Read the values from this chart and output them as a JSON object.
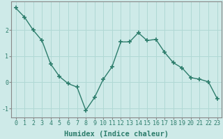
{
  "x": [
    0,
    1,
    2,
    3,
    4,
    5,
    6,
    7,
    8,
    9,
    10,
    11,
    12,
    13,
    14,
    15,
    16,
    17,
    18,
    19,
    20,
    21,
    22,
    23
  ],
  "y": [
    2.85,
    2.5,
    2.0,
    1.6,
    0.7,
    0.22,
    -0.05,
    -0.18,
    -1.07,
    -0.58,
    0.12,
    0.6,
    1.55,
    1.55,
    1.9,
    1.6,
    1.65,
    1.15,
    0.75,
    0.55,
    0.18,
    0.12,
    0.02,
    -0.62
  ],
  "line_color": "#2d7d6c",
  "marker": "+",
  "marker_size": 4,
  "marker_lw": 1.2,
  "bg_color": "#ceeae8",
  "grid_color": "#b0d8d4",
  "xlabel": "Humidex (Indice chaleur)",
  "xlim": [
    -0.5,
    23.5
  ],
  "ylim": [
    -1.35,
    3.1
  ],
  "yticks": [
    -1,
    0,
    1,
    2
  ],
  "xticks": [
    0,
    1,
    2,
    3,
    4,
    5,
    6,
    7,
    8,
    9,
    10,
    11,
    12,
    13,
    14,
    15,
    16,
    17,
    18,
    19,
    20,
    21,
    22,
    23
  ],
  "tick_fontsize": 6,
  "xlabel_fontsize": 7.5,
  "tick_color": "#2d7d6c",
  "spine_color": "#888888",
  "line_width": 1.0
}
